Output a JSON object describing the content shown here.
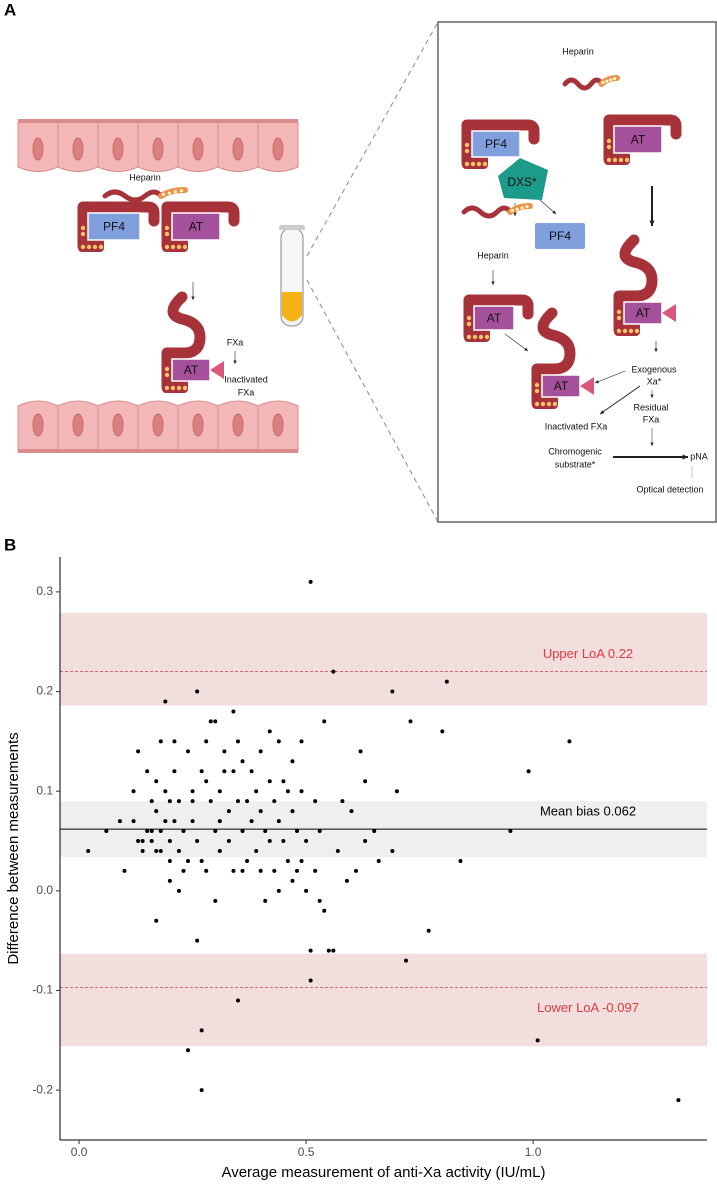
{
  "diagram": {
    "panel_label": "A",
    "left": {
      "heparin": "Heparin",
      "pf4": "PF4",
      "at_free": "AT",
      "at_bound": "AT",
      "fxa": "FXa",
      "inactivated_fxa": [
        "Inactivated",
        "FXa"
      ]
    },
    "inset": {
      "heparin": "Heparin",
      "pf4": "PF4",
      "at_top": "AT",
      "dxs": "DXS*",
      "pf4_released": "PF4",
      "heparin_released": "Heparin",
      "at_free": "AT",
      "at_bound_left": "AT",
      "at_bound_right": "AT",
      "exogenous_xa": [
        "Exogenous",
        "Xa*"
      ],
      "inactivated_fxa": "Inactivated FXa",
      "residual_fxa": [
        "Residual",
        "FXa"
      ],
      "chromogenic_substrate": [
        "Chromogenic",
        "substrate*"
      ],
      "pna": "pNA",
      "optical_detection": "Optical detection"
    }
  },
  "chart_data": {
    "type": "scatter",
    "panel_label": "B",
    "x_label": "Average measurement of anti-Xa activity (IU/mL)",
    "y_label": "Difference between measurements",
    "color": "#000000",
    "x": [
      0.02,
      0.06,
      0.09,
      0.1,
      0.12,
      0.12,
      0.13,
      0.13,
      0.14,
      0.14,
      0.15,
      0.15,
      0.16,
      0.16,
      0.16,
      0.17,
      0.17,
      0.17,
      0.17,
      0.18,
      0.18,
      0.18,
      0.19,
      0.19,
      0.19,
      0.2,
      0.2,
      0.2,
      0.2,
      0.21,
      0.21,
      0.21,
      0.22,
      0.22,
      0.22,
      0.23,
      0.23,
      0.24,
      0.24,
      0.24,
      0.25,
      0.25,
      0.25,
      0.26,
      0.26,
      0.26,
      0.27,
      0.27,
      0.27,
      0.27,
      0.28,
      0.28,
      0.28,
      0.29,
      0.29,
      0.3,
      0.3,
      0.3,
      0.31,
      0.31,
      0.31,
      0.32,
      0.32,
      0.33,
      0.33,
      0.34,
      0.34,
      0.34,
      0.35,
      0.35,
      0.35,
      0.36,
      0.36,
      0.36,
      0.37,
      0.37,
      0.38,
      0.38,
      0.39,
      0.39,
      0.4,
      0.4,
      0.4,
      0.41,
      0.41,
      0.42,
      0.42,
      0.42,
      0.43,
      0.43,
      0.44,
      0.44,
      0.44,
      0.45,
      0.45,
      0.46,
      0.46,
      0.47,
      0.47,
      0.47,
      0.48,
      0.48,
      0.49,
      0.49,
      0.49,
      0.5,
      0.5,
      0.51,
      0.51,
      0.51,
      0.52,
      0.52,
      0.53,
      0.53,
      0.54,
      0.54,
      0.55,
      0.56,
      0.56,
      0.57,
      0.58,
      0.59,
      0.6,
      0.61,
      0.62,
      0.63,
      0.63,
      0.65,
      0.66,
      0.69,
      0.69,
      0.7,
      0.72,
      0.73,
      0.77,
      0.8,
      0.81,
      0.84,
      0.95,
      0.99,
      1.01,
      1.08,
      1.32
    ],
    "values": [
      0.04,
      0.06,
      0.07,
      0.02,
      0.1,
      0.07,
      0.14,
      0.05,
      0.04,
      0.05,
      0.12,
      0.06,
      0.09,
      0.05,
      0.06,
      0.08,
      0.04,
      0.11,
      -0.03,
      0.15,
      0.04,
      0.06,
      0.1,
      0.07,
      0.19,
      0.05,
      0.03,
      0.01,
      0.09,
      0.15,
      0.07,
      0.12,
      0.0,
      0.04,
      0.09,
      0.02,
      0.06,
      0.14,
      0.03,
      -0.16,
      0.1,
      0.07,
      0.09,
      0.2,
      -0.05,
      0.05,
      0.12,
      -0.14,
      -0.2,
      0.03,
      0.15,
      0.11,
      0.02,
      0.17,
      0.09,
      0.17,
      0.06,
      -0.01,
      0.07,
      0.1,
      0.04,
      0.14,
      0.12,
      0.08,
      0.05,
      0.18,
      0.12,
      0.02,
      0.15,
      0.09,
      -0.11,
      0.13,
      0.06,
      0.02,
      0.09,
      0.03,
      0.12,
      0.07,
      0.1,
      0.04,
      0.14,
      0.08,
      0.02,
      0.06,
      -0.01,
      0.16,
      0.11,
      0.05,
      0.09,
      0.02,
      0.15,
      0.07,
      0.0,
      0.11,
      0.05,
      0.1,
      0.03,
      0.13,
      0.08,
      0.01,
      0.06,
      0.02,
      0.15,
      0.1,
      0.03,
      0.05,
      0.0,
      -0.06,
      0.31,
      -0.09,
      0.09,
      0.02,
      -0.01,
      0.06,
      -0.02,
      0.17,
      -0.06,
      -0.06,
      0.22,
      0.04,
      0.09,
      0.01,
      0.08,
      0.02,
      0.14,
      0.11,
      0.05,
      0.06,
      0.03,
      0.04,
      0.2,
      0.1,
      -0.07,
      0.17,
      -0.04,
      0.16,
      0.21,
      0.03,
      0.06,
      0.12,
      -0.15,
      0.15,
      -0.21
    ],
    "reference_lines": [
      {
        "label": "Upper LoA 0.22",
        "value": 0.22,
        "band": [
          0.186,
          0.279
        ],
        "color": "#e0393e",
        "band_color": "#f3dede",
        "style": "dashed"
      },
      {
        "label": "Mean bias 0.062",
        "value": 0.062,
        "band": [
          0.034,
          0.09
        ],
        "color": "#000000",
        "band_color": "#efefed",
        "style": "solid"
      },
      {
        "label": "Lower LoA -0.097",
        "value": -0.097,
        "band": [
          -0.156,
          -0.063
        ],
        "color": "#e0393e",
        "band_color": "#f3dede",
        "style": "dashed"
      }
    ],
    "xlim": [
      -0.042,
      1.383
    ],
    "ylim": [
      -0.25,
      0.335
    ],
    "xticks": [
      {
        "value": 0,
        "label": "0.0"
      },
      0.5,
      {
        "value": 1,
        "label": "1.0"
      }
    ],
    "yticks": [
      -0.2,
      -0.1,
      {
        "value": 0,
        "label": "0.0"
      },
      0.1,
      0.2,
      0.3
    ],
    "grid": false
  }
}
